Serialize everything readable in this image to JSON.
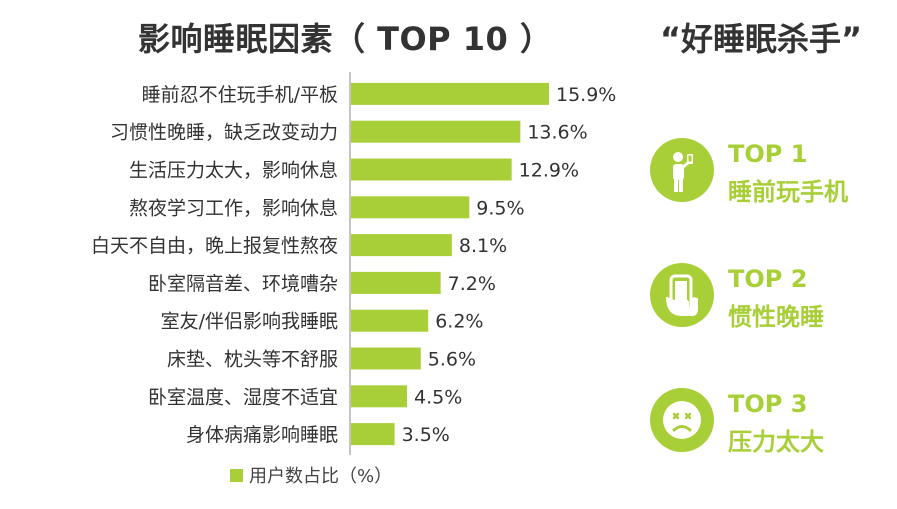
{
  "chart_data": {
    "type": "bar",
    "orientation": "horizontal",
    "title": "影响睡眠因素（ TOP 10 ）",
    "categories": [
      "睡前忍不住玩手机/平板",
      "习惯性晚睡，缺乏改变动力",
      "生活压力太大，影响休息",
      "熬夜学习工作，影响休息",
      "白天不自由，晚上报复性熬夜",
      "卧室隔音差、环境嘈杂",
      "室友/伴侣影响我睡眠",
      "床垫、枕头等不舒服",
      "卧室温度、湿度不适宜",
      "身体病痛影响睡眠"
    ],
    "values": [
      15.9,
      13.6,
      12.9,
      9.5,
      8.1,
      7.2,
      6.2,
      5.6,
      4.5,
      3.5
    ],
    "value_labels": [
      "15.9%",
      "13.6%",
      "12.9%",
      "9.5%",
      "8.1%",
      "7.2%",
      "6.2%",
      "5.6%",
      "4.5%",
      "3.5%"
    ],
    "series": [
      {
        "name": "用户数占比（%）"
      }
    ],
    "xlim": [
      0,
      20
    ],
    "grid": false,
    "legend_position": "bottom",
    "bar_color": "#a9cf38"
  },
  "side_panel": {
    "title": "“好睡眠杀手”",
    "items": [
      {
        "rank": "TOP 1",
        "name": "睡前玩手机",
        "icon": "person-phone-icon"
      },
      {
        "rank": "TOP 2",
        "name": "惯性晚睡",
        "icon": "hand-phone-icon"
      },
      {
        "rank": "TOP 3",
        "name": "压力太大",
        "icon": "stressed-face-icon"
      }
    ],
    "accent": "#a9cf38"
  }
}
